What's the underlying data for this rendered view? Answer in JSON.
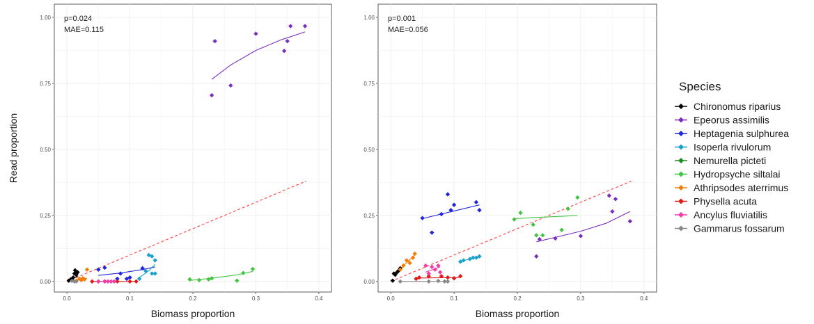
{
  "legend": {
    "title": "Species"
  },
  "species": [
    {
      "name": "Chironomus riparius",
      "color": "#000000"
    },
    {
      "name": "Epeorus assimilis",
      "color": "#7b2fbe"
    },
    {
      "name": "Heptagenia sulphurea",
      "color": "#1f25d8"
    },
    {
      "name": "Isoperla rivulorum",
      "color": "#1aa0cc"
    },
    {
      "name": "Nemurella picteti",
      "color": "#1f8a1f"
    },
    {
      "name": "Hydropsyche siltalai",
      "color": "#41c541"
    },
    {
      "name": "Athripsodes aterrimus",
      "color": "#f07f0a"
    },
    {
      "name": "Physella acuta",
      "color": "#e01a1a"
    },
    {
      "name": "Ancylus fluviatilis",
      "color": "#f03ca8"
    },
    {
      "name": "Gammarus fossarum",
      "color": "#888888"
    }
  ],
  "chart_data": [
    {
      "type": "scatter",
      "xlabel": "Biomass proportion",
      "ylabel": "Read proportion",
      "xlim": [
        -0.02,
        0.42
      ],
      "ylim": [
        -0.04,
        1.05
      ],
      "xticks": [
        "0.0",
        "0.1",
        "0.2",
        "0.3",
        "0.4"
      ],
      "yticks": [
        "0.00",
        "0.25",
        "0.50",
        "0.75",
        "1.00"
      ],
      "annotations": [
        "p=0.024",
        "MAE=0.115"
      ],
      "reference_line": {
        "style": "dashed",
        "color": "#ff4d4d",
        "x": [
          0,
          0.38
        ],
        "y": [
          0,
          0.38
        ]
      },
      "series": [
        {
          "name": "Chironomus riparius",
          "points": [
            [
              0.003,
              0.003
            ],
            [
              0.006,
              0.008
            ],
            [
              0.008,
              0.004
            ],
            [
              0.01,
              0.015
            ],
            [
              0.012,
              0.03
            ],
            [
              0.013,
              0.042
            ],
            [
              0.015,
              0.025
            ],
            [
              0.017,
              0.035
            ]
          ],
          "fit": [
            [
              0.003,
              0.004
            ],
            [
              0.017,
              0.02
            ]
          ]
        },
        {
          "name": "Epeorus assimilis",
          "points": [
            [
              0.23,
              0.705
            ],
            [
              0.235,
              0.91
            ],
            [
              0.26,
              0.742
            ],
            [
              0.3,
              0.938
            ],
            [
              0.345,
              0.873
            ],
            [
              0.35,
              0.91
            ],
            [
              0.355,
              0.967
            ],
            [
              0.378,
              0.967
            ]
          ],
          "fit": [
            [
              0.23,
              0.765
            ],
            [
              0.26,
              0.82
            ],
            [
              0.3,
              0.875
            ],
            [
              0.34,
              0.915
            ],
            [
              0.378,
              0.945
            ]
          ]
        },
        {
          "name": "Heptagenia sulphurea",
          "points": [
            [
              0.05,
              0.045
            ],
            [
              0.06,
              0.052
            ],
            [
              0.08,
              0.01
            ],
            [
              0.085,
              0.03
            ],
            [
              0.095,
              0.01
            ],
            [
              0.1,
              0.015
            ],
            [
              0.12,
              0.05
            ]
          ],
          "fit": [
            [
              0.05,
              0.023
            ],
            [
              0.085,
              0.032
            ],
            [
              0.12,
              0.045
            ],
            [
              0.14,
              0.055
            ]
          ]
        },
        {
          "name": "Isoperla rivulorum",
          "points": [
            [
              0.115,
              0.01
            ],
            [
              0.125,
              0.04
            ],
            [
              0.13,
              0.1
            ],
            [
              0.135,
              0.095
            ],
            [
              0.135,
              0.03
            ],
            [
              0.14,
              0.03
            ],
            [
              0.14,
              0.08
            ]
          ],
          "fit": [
            [
              0.115,
              0.015
            ],
            [
              0.13,
              0.04
            ],
            [
              0.14,
              0.065
            ]
          ]
        },
        {
          "name": "Nemurella picteti",
          "points": [],
          "fit": []
        },
        {
          "name": "Hydropsyche siltalai",
          "points": [
            [
              0.195,
              0.008
            ],
            [
              0.21,
              0.005
            ],
            [
              0.225,
              0.008
            ],
            [
              0.23,
              0.012
            ],
            [
              0.27,
              0.003
            ],
            [
              0.28,
              0.032
            ],
            [
              0.295,
              0.047
            ]
          ],
          "fit": [
            [
              0.195,
              0.004
            ],
            [
              0.23,
              0.012
            ],
            [
              0.27,
              0.025
            ],
            [
              0.295,
              0.038
            ]
          ]
        },
        {
          "name": "Athripsodes aterrimus",
          "points": [
            [
              0.015,
              0.003
            ],
            [
              0.02,
              0.01
            ],
            [
              0.023,
              0.005
            ],
            [
              0.025,
              0.012
            ],
            [
              0.028,
              0.008
            ],
            [
              0.032,
              0.045
            ]
          ],
          "fit": [
            [
              0.015,
              0.005
            ],
            [
              0.032,
              0.012
            ]
          ]
        },
        {
          "name": "Physella acuta",
          "points": [
            [
              0.04,
              0.0
            ],
            [
              0.05,
              0.0
            ],
            [
              0.06,
              0.0
            ],
            [
              0.08,
              0.0
            ],
            [
              0.1,
              0.0
            ],
            [
              0.11,
              0.0
            ]
          ],
          "fit": [
            [
              0.04,
              0.0
            ],
            [
              0.11,
              0.0
            ]
          ]
        },
        {
          "name": "Ancylus fluviatilis",
          "points": [
            [
              0.05,
              0.0
            ],
            [
              0.06,
              0.0
            ],
            [
              0.065,
              0.0
            ],
            [
              0.07,
              0.0
            ],
            [
              0.075,
              0.0
            ]
          ],
          "fit": [
            [
              0.05,
              0.0
            ],
            [
              0.075,
              0.0
            ]
          ]
        },
        {
          "name": "Gammarus fossarum",
          "points": [
            [
              0.008,
              0.002
            ],
            [
              0.012,
              0.0
            ],
            [
              0.015,
              0.0
            ]
          ],
          "fit": [
            [
              0.008,
              0.001
            ],
            [
              0.015,
              0.0
            ]
          ]
        }
      ]
    },
    {
      "type": "scatter",
      "xlabel": "Biomass proportion",
      "ylabel": "",
      "xlim": [
        -0.02,
        0.42
      ],
      "ylim": [
        -0.04,
        1.05
      ],
      "xticks": [
        "0.0",
        "0.1",
        "0.2",
        "0.3",
        "0.4"
      ],
      "yticks": [
        "0.00",
        "0.25",
        "0.50",
        "0.75",
        "1.00"
      ],
      "annotations": [
        "p=0.001",
        "MAE=0.056"
      ],
      "reference_line": {
        "style": "dashed",
        "color": "#ff4d4d",
        "x": [
          0,
          0.38
        ],
        "y": [
          0,
          0.38
        ]
      },
      "series": [
        {
          "name": "Chironomus riparius",
          "points": [
            [
              0.003,
              0.003
            ],
            [
              0.005,
              0.03
            ],
            [
              0.007,
              0.025
            ],
            [
              0.01,
              0.035
            ],
            [
              0.012,
              0.04
            ],
            [
              0.015,
              0.05
            ]
          ],
          "fit": [
            [
              0.003,
              0.025
            ],
            [
              0.015,
              0.045
            ]
          ]
        },
        {
          "name": "Epeorus assimilis",
          "points": [
            [
              0.23,
              0.095
            ],
            [
              0.235,
              0.16
            ],
            [
              0.26,
              0.163
            ],
            [
              0.3,
              0.172
            ],
            [
              0.345,
              0.325
            ],
            [
              0.35,
              0.265
            ],
            [
              0.355,
              0.312
            ],
            [
              0.378,
              0.228
            ]
          ],
          "fit": [
            [
              0.23,
              0.15
            ],
            [
              0.3,
              0.19
            ],
            [
              0.34,
              0.22
            ],
            [
              0.378,
              0.265
            ]
          ]
        },
        {
          "name": "Heptagenia sulphurea",
          "points": [
            [
              0.05,
              0.24
            ],
            [
              0.065,
              0.185
            ],
            [
              0.08,
              0.255
            ],
            [
              0.09,
              0.33
            ],
            [
              0.095,
              0.27
            ],
            [
              0.1,
              0.29
            ],
            [
              0.135,
              0.3
            ],
            [
              0.14,
              0.27
            ]
          ],
          "fit": [
            [
              0.05,
              0.238
            ],
            [
              0.14,
              0.29
            ]
          ]
        },
        {
          "name": "Isoperla rivulorum",
          "points": [
            [
              0.11,
              0.075
            ],
            [
              0.115,
              0.08
            ],
            [
              0.125,
              0.085
            ],
            [
              0.13,
              0.09
            ],
            [
              0.135,
              0.09
            ],
            [
              0.14,
              0.095
            ]
          ],
          "fit": [
            [
              0.11,
              0.076
            ],
            [
              0.14,
              0.094
            ]
          ]
        },
        {
          "name": "Nemurella picteti",
          "points": [],
          "fit": []
        },
        {
          "name": "Hydropsyche siltalai",
          "points": [
            [
              0.195,
              0.235
            ],
            [
              0.205,
              0.26
            ],
            [
              0.225,
              0.215
            ],
            [
              0.23,
              0.175
            ],
            [
              0.24,
              0.175
            ],
            [
              0.27,
              0.195
            ],
            [
              0.28,
              0.275
            ],
            [
              0.295,
              0.318
            ]
          ],
          "fit": [
            [
              0.195,
              0.238
            ],
            [
              0.295,
              0.25
            ]
          ]
        },
        {
          "name": "Athripsodes aterrimus",
          "points": [
            [
              0.015,
              0.045
            ],
            [
              0.02,
              0.06
            ],
            [
              0.025,
              0.08
            ],
            [
              0.03,
              0.07
            ],
            [
              0.035,
              0.09
            ],
            [
              0.038,
              0.105
            ]
          ],
          "fit": [
            [
              0.015,
              0.048
            ],
            [
              0.038,
              0.1
            ]
          ]
        },
        {
          "name": "Physella acuta",
          "points": [
            [
              0.04,
              0.01
            ],
            [
              0.045,
              0.015
            ],
            [
              0.06,
              0.02
            ],
            [
              0.08,
              0.02
            ],
            [
              0.09,
              0.015
            ],
            [
              0.1,
              0.012
            ],
            [
              0.11,
              0.02
            ]
          ],
          "fit": [
            [
              0.04,
              0.013
            ],
            [
              0.11,
              0.015
            ]
          ]
        },
        {
          "name": "Ancylus fluviatilis",
          "points": [
            [
              0.055,
              0.06
            ],
            [
              0.06,
              0.03
            ],
            [
              0.065,
              0.055
            ],
            [
              0.07,
              0.045
            ],
            [
              0.075,
              0.06
            ],
            [
              0.078,
              0.035
            ]
          ],
          "fit": [
            [
              0.055,
              0.035
            ],
            [
              0.078,
              0.055
            ]
          ]
        },
        {
          "name": "Gammarus fossarum",
          "points": [
            [
              0.015,
              0.0
            ],
            [
              0.06,
              0.0
            ],
            [
              0.075,
              0.002
            ],
            [
              0.085,
              0.0
            ],
            [
              0.09,
              0.0
            ]
          ],
          "fit": [
            [
              0.015,
              0.0
            ],
            [
              0.09,
              0.0
            ]
          ]
        }
      ]
    }
  ]
}
